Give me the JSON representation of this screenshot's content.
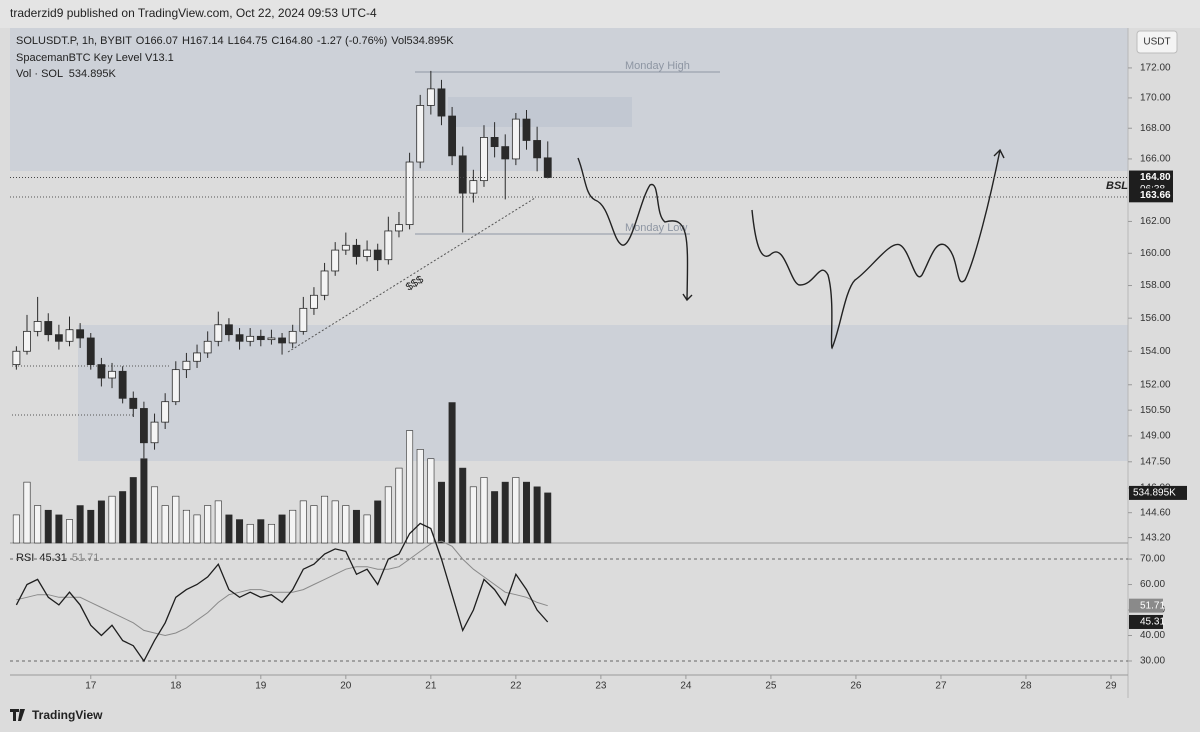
{
  "header": "traderzid9 published on TradingView.com, Oct 22, 2024 09:53 UTC-4",
  "footer": "TradingView",
  "chart_data": [
    {
      "type": "candlestick",
      "symbol_legend": "SOLUSDT.P, 1h, BYBIT",
      "ohlc_legend": [
        "O166.07",
        "H167.14",
        "L164.75",
        "C164.80",
        "-1.27 (-0.76%)",
        "Vol534.895K"
      ],
      "indicator": "SpacemanBTC Key Level V13.1",
      "volume_legend": "Vol · SOL  534.895K",
      "currency": "USDT",
      "annotations": [
        "Monday High",
        "Monday Low",
        "BSL",
        "$$$"
      ],
      "countdown": "06:38",
      "log_scale": true,
      "up_color": "#f4f4f4",
      "down_color": "#2a2a2a",
      "x": [
        16.125,
        16.25,
        16.375,
        16.5,
        16.625,
        16.75,
        16.875,
        17,
        17.125,
        17.25,
        17.375,
        17.5,
        17.625,
        17.75,
        17.875,
        18,
        18.125,
        18.25,
        18.375,
        18.5,
        18.625,
        18.75,
        18.875,
        19,
        19.125,
        19.25,
        19.375,
        19.5,
        19.625,
        19.75,
        19.875,
        20,
        20.125,
        20.25,
        20.375,
        20.5,
        20.625,
        20.75,
        20.875,
        21,
        21.125,
        21.25,
        21.375,
        21.5,
        21.625,
        21.75,
        21.875,
        22,
        22.125,
        22.25,
        22.375
      ],
      "open": [
        153.2,
        154.0,
        155.2,
        155.8,
        155.0,
        154.6,
        155.3,
        154.8,
        153.2,
        152.4,
        152.8,
        151.2,
        150.6,
        148.6,
        149.8,
        151.0,
        152.9,
        153.4,
        153.9,
        154.6,
        155.6,
        155.0,
        154.6,
        154.9,
        154.7,
        154.8,
        154.5,
        155.2,
        156.6,
        157.4,
        158.9,
        160.2,
        160.5,
        159.8,
        160.2,
        159.6,
        161.4,
        161.8,
        165.8,
        169.5,
        170.6,
        168.8,
        166.2,
        163.8,
        164.6,
        167.4,
        166.8,
        166.0,
        168.6,
        167.2,
        166.07
      ],
      "high": [
        154.3,
        156.2,
        157.3,
        156.3,
        155.6,
        156.1,
        155.7,
        155.1,
        153.6,
        153.3,
        153.1,
        151.6,
        151.0,
        150.3,
        151.5,
        153.4,
        153.9,
        154.4,
        155.2,
        156.4,
        156.0,
        155.4,
        155.4,
        155.3,
        155.3,
        155.1,
        155.6,
        157.3,
        157.9,
        159.4,
        160.7,
        161.3,
        160.9,
        160.8,
        160.6,
        162.3,
        162.6,
        166.4,
        170.2,
        171.8,
        171.2,
        169.4,
        166.8,
        165.3,
        168.2,
        168.4,
        167.6,
        169.0,
        169.2,
        168.1,
        167.14
      ],
      "low": [
        152.9,
        153.8,
        154.9,
        154.6,
        154.1,
        154.3,
        154.2,
        152.9,
        151.9,
        151.8,
        150.9,
        150.1,
        147.7,
        148.2,
        149.4,
        150.8,
        152.4,
        153.0,
        153.6,
        154.3,
        154.6,
        154.1,
        154.3,
        154.3,
        154.4,
        153.8,
        154.2,
        155.0,
        156.2,
        157.1,
        158.6,
        159.9,
        159.3,
        159.5,
        158.9,
        159.3,
        161.0,
        161.5,
        165.4,
        168.9,
        168.2,
        165.6,
        161.3,
        163.2,
        164.2,
        166.1,
        163.4,
        165.6,
        166.6,
        165.2,
        164.75
      ],
      "close": [
        154.0,
        155.2,
        155.8,
        155.0,
        154.6,
        155.3,
        154.8,
        153.2,
        152.4,
        152.8,
        151.2,
        150.6,
        148.6,
        149.8,
        151.0,
        152.9,
        153.4,
        153.9,
        154.6,
        155.6,
        155.0,
        154.6,
        154.9,
        154.7,
        154.8,
        154.5,
        155.2,
        156.6,
        157.4,
        158.9,
        160.2,
        160.5,
        159.8,
        160.2,
        159.6,
        161.4,
        161.8,
        165.8,
        169.5,
        170.6,
        168.8,
        166.2,
        163.8,
        164.6,
        167.4,
        166.8,
        166.0,
        168.6,
        167.2,
        166.07,
        164.8
      ],
      "volume": [
        300,
        650,
        400,
        350,
        300,
        250,
        400,
        350,
        450,
        500,
        550,
        700,
        900,
        600,
        400,
        500,
        350,
        300,
        400,
        450,
        300,
        250,
        200,
        250,
        200,
        300,
        350,
        450,
        400,
        500,
        450,
        400,
        350,
        300,
        450,
        600,
        800,
        1200,
        1000,
        900,
        650,
        1500,
        800,
        600,
        700,
        550,
        650,
        700,
        650,
        600,
        534.895
      ],
      "volume_axis": "y2",
      "y2lim": [
        0,
        5500
      ],
      "volume_tag": {
        "value": 534.895,
        "label": "534.895K"
      },
      "price_tags": [
        {
          "value": 164.8,
          "label": "164.80"
        },
        {
          "value": 163.66,
          "label": "163.66"
        }
      ],
      "ylim": [
        142.9,
        174.7
      ],
      "yticks": [
        {
          "value": 172,
          "label": "172.00"
        },
        {
          "value": 170,
          "label": "170.00"
        },
        {
          "value": 168,
          "label": "168.00"
        },
        {
          "value": 166,
          "label": "166.00"
        },
        {
          "value": 162,
          "label": "162.00"
        },
        {
          "value": 160,
          "label": "160.00"
        },
        {
          "value": 158,
          "label": "158.00"
        },
        {
          "value": 156,
          "label": "156.00"
        },
        {
          "value": 154,
          "label": "154.00"
        },
        {
          "value": 152,
          "label": "152.00"
        },
        {
          "value": 150.5,
          "label": "150.50"
        },
        {
          "value": 149,
          "label": "149.00"
        },
        {
          "value": 147.5,
          "label": "147.50"
        },
        {
          "value": 146,
          "label": "146.00"
        },
        {
          "value": 144.6,
          "label": "144.60"
        },
        {
          "value": 143.2,
          "label": "143.20"
        }
      ],
      "xlim": [
        16.05,
        29.2
      ],
      "xticks": [
        17,
        18,
        19,
        20,
        21,
        22,
        23,
        24,
        25,
        26,
        27,
        28,
        29
      ]
    },
    {
      "type": "line",
      "title": "RSI",
      "x": [
        16.125,
        16.25,
        16.375,
        16.5,
        16.625,
        16.75,
        16.875,
        17,
        17.125,
        17.25,
        17.375,
        17.5,
        17.625,
        17.75,
        17.875,
        18,
        18.125,
        18.25,
        18.375,
        18.5,
        18.625,
        18.75,
        18.875,
        19,
        19.125,
        19.25,
        19.375,
        19.5,
        19.625,
        19.75,
        19.875,
        20,
        20.125,
        20.25,
        20.375,
        20.5,
        20.625,
        20.75,
        20.875,
        21,
        21.125,
        21.25,
        21.375,
        21.5,
        21.625,
        21.75,
        21.875,
        22,
        22.125,
        22.25,
        22.375
      ],
      "series": [
        {
          "color": "#1e1e1e",
          "tag": {
            "value": 45.31,
            "label": "45.31"
          },
          "values": [
            52,
            60,
            62,
            55,
            52,
            57,
            52,
            44,
            40,
            44,
            38,
            36,
            30,
            38,
            45,
            55,
            58,
            60,
            63,
            68,
            58,
            55,
            57,
            55,
            56,
            53,
            58,
            66,
            68,
            72,
            74,
            73,
            64,
            66,
            60,
            70,
            72,
            80,
            84,
            82,
            70,
            56,
            42,
            50,
            62,
            58,
            52,
            64,
            58,
            50,
            45.31
          ]
        },
        {
          "color": "#8a8a8a",
          "tag": {
            "value": 51.71,
            "label": "51.71"
          },
          "values": [
            54,
            55,
            56,
            56,
            55,
            55,
            55,
            53,
            51,
            49,
            47,
            45,
            42,
            41,
            40,
            41,
            43,
            46,
            49,
            53,
            56,
            57,
            58,
            58,
            57,
            57,
            57,
            58,
            60,
            62,
            64,
            66,
            67,
            67,
            66,
            66,
            67,
            70,
            73,
            76,
            77,
            75,
            70,
            66,
            63,
            60,
            57,
            56,
            55,
            53,
            51.71
          ]
        }
      ],
      "dashed_bands": true,
      "ylim": [
        24.5,
        76.3
      ],
      "yticks": [
        {
          "value": 70,
          "label": "70.00"
        },
        {
          "value": 60,
          "label": "60.00"
        },
        {
          "value": 50,
          "label": "50.00"
        },
        {
          "value": 40,
          "label": "40.00"
        },
        {
          "value": 30,
          "label": "30.00"
        }
      ]
    }
  ]
}
